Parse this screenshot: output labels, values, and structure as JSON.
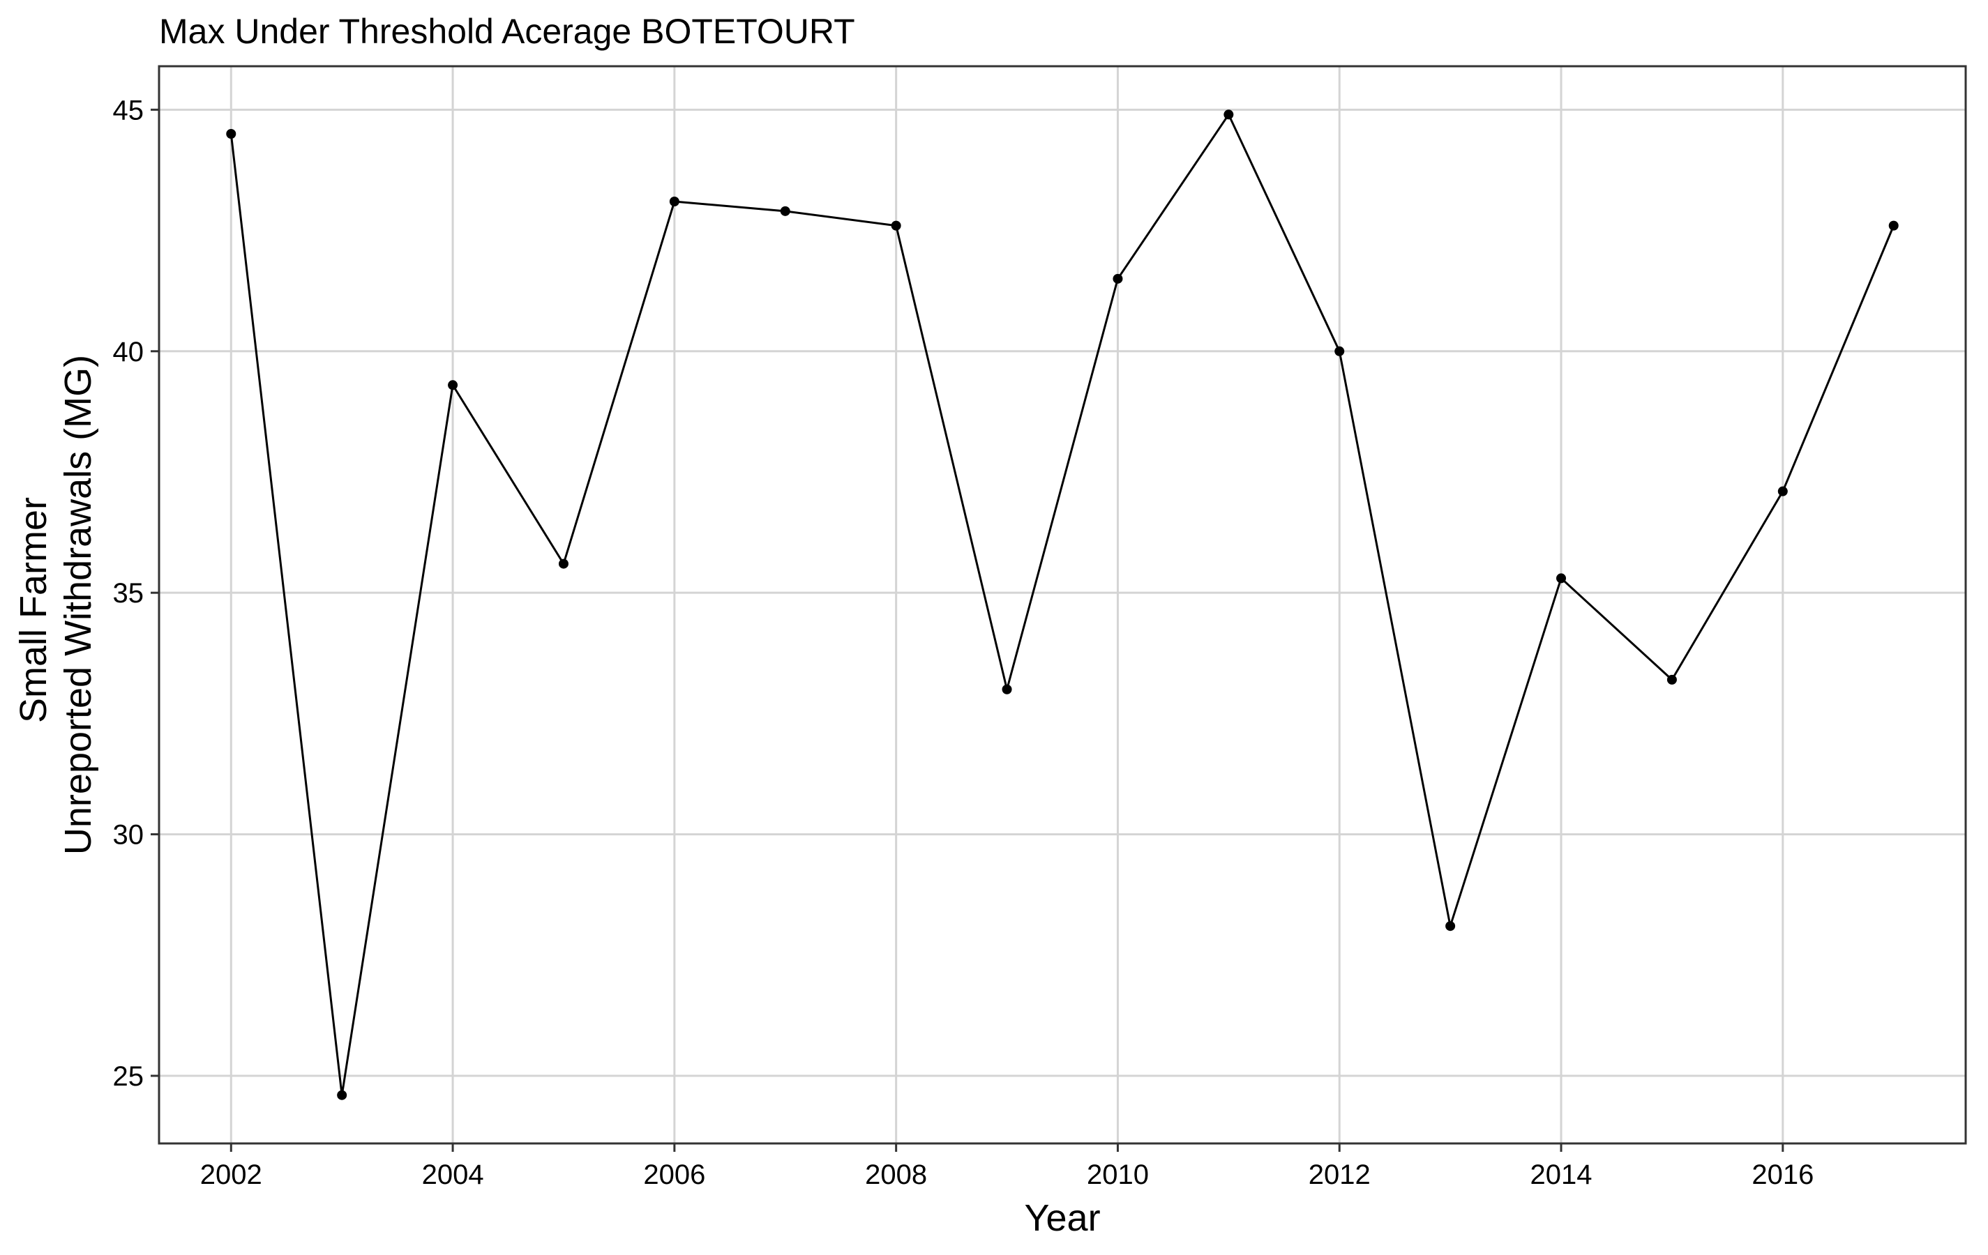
{
  "chart_data": {
    "type": "line",
    "title": "Max Under Threshold Acerage BOTETOURT",
    "xlabel": "Year",
    "ylabel_lines": [
      "Small Farmer",
      "Unreported Withdrawals (MG)"
    ],
    "x": [
      2002,
      2003,
      2004,
      2005,
      2006,
      2007,
      2008,
      2009,
      2010,
      2011,
      2012,
      2013,
      2014,
      2015,
      2016,
      2017
    ],
    "series": [
      {
        "values": [
          44.5,
          24.6,
          39.3,
          35.6,
          43.1,
          42.9,
          42.6,
          33.0,
          41.5,
          44.9,
          40.0,
          28.1,
          35.3,
          33.2,
          37.1,
          42.6
        ]
      }
    ],
    "xlim": [
      2001.35,
      2017.65
    ],
    "ylim": [
      23.6,
      45.9
    ],
    "x_ticks": [
      2002,
      2004,
      2006,
      2008,
      2010,
      2012,
      2014,
      2016
    ],
    "y_ticks": [
      25,
      30,
      35,
      40,
      45
    ],
    "grid": true,
    "legend": "none",
    "line_color": "#000000",
    "grid_color": "#d4d4d4"
  }
}
